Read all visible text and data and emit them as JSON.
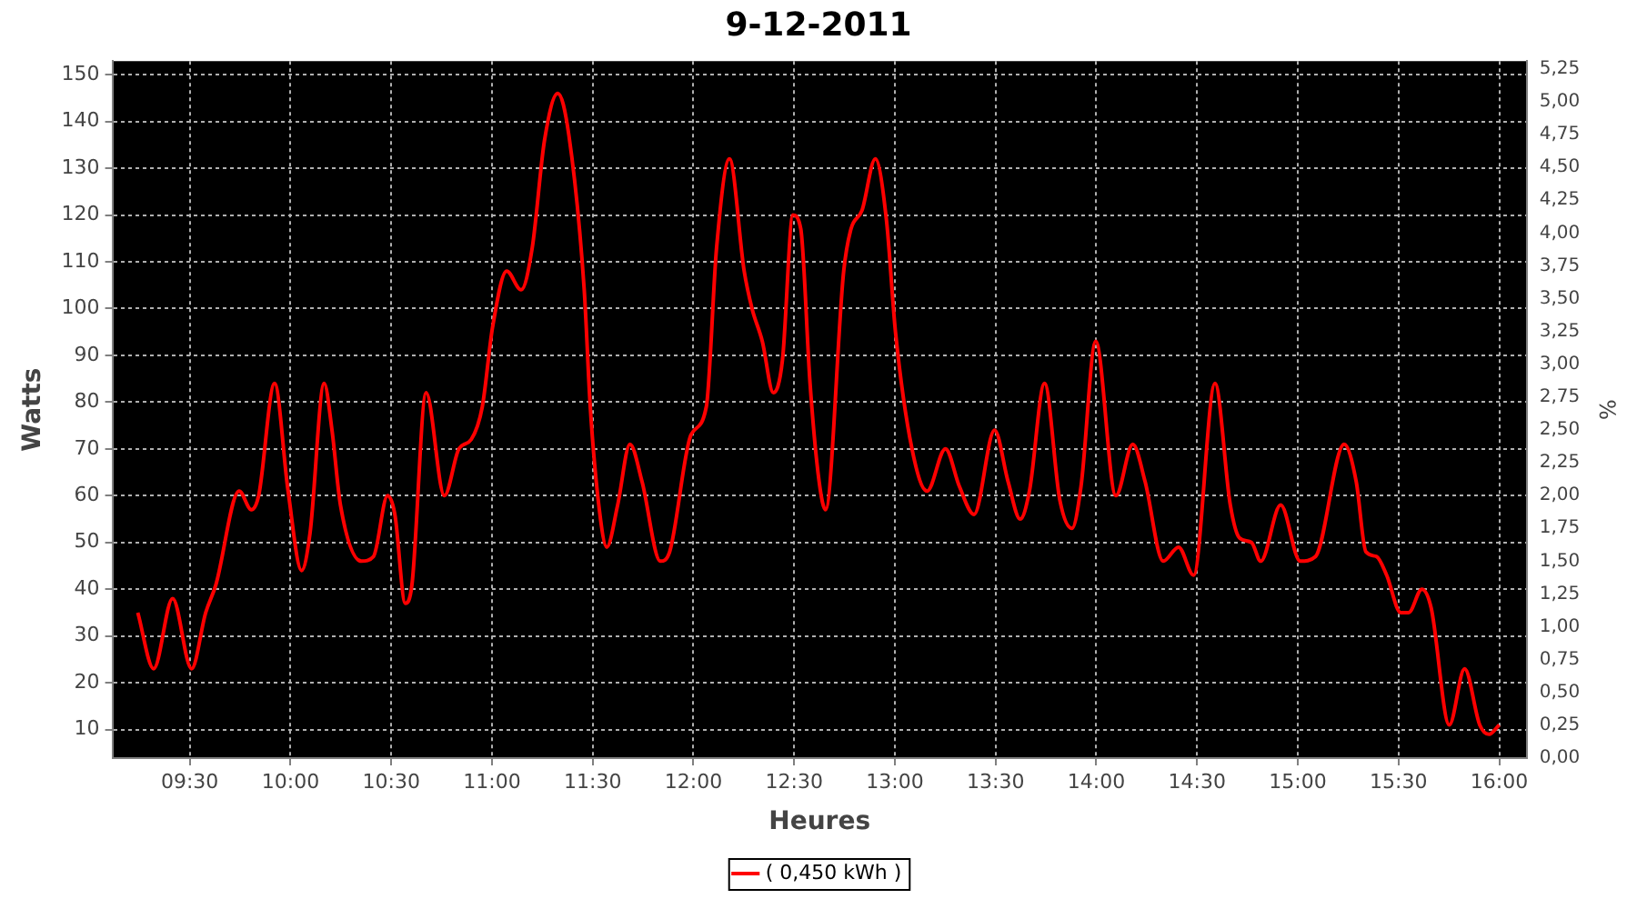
{
  "chart_data": {
    "type": "line",
    "title": "9-12-2011",
    "xlabel": "Heures",
    "ylabel": "Watts",
    "y2label": "%",
    "xlim": [
      9.116,
      16.136
    ],
    "xticks": [
      {
        "value": 9.5,
        "label": "09:30"
      },
      {
        "value": 10,
        "label": "10:00"
      },
      {
        "value": 10.5,
        "label": "10:30"
      },
      {
        "value": 11,
        "label": "11:00"
      },
      {
        "value": 11.5,
        "label": "11:30"
      },
      {
        "value": 12,
        "label": "12:00"
      },
      {
        "value": 12.5,
        "label": "12:30"
      },
      {
        "value": 13,
        "label": "13:00"
      },
      {
        "value": 13.5,
        "label": "13:30"
      },
      {
        "value": 14,
        "label": "14:00"
      },
      {
        "value": 14.5,
        "label": "14:30"
      },
      {
        "value": 15,
        "label": "15:00"
      },
      {
        "value": 15.5,
        "label": "15:30"
      },
      {
        "value": 16,
        "label": "16:00"
      }
    ],
    "ylim": [
      3.9,
      152.9
    ],
    "yticks": [
      10,
      20,
      30,
      40,
      50,
      60,
      70,
      80,
      90,
      100,
      110,
      120,
      130,
      140,
      150
    ],
    "y2lim": [
      0,
      5.31
    ],
    "y2ticks": [
      {
        "value": 0,
        "label": "0,00"
      },
      {
        "value": 0.25,
        "label": "0,25"
      },
      {
        "value": 0.5,
        "label": "0,50"
      },
      {
        "value": 0.75,
        "label": "0,75"
      },
      {
        "value": 1,
        "label": "1,00"
      },
      {
        "value": 1.25,
        "label": "1,25"
      },
      {
        "value": 1.5,
        "label": "1,50"
      },
      {
        "value": 1.75,
        "label": "1,75"
      },
      {
        "value": 2,
        "label": "2,00"
      },
      {
        "value": 2.25,
        "label": "2,25"
      },
      {
        "value": 2.5,
        "label": "2,50"
      },
      {
        "value": 2.75,
        "label": "2,75"
      },
      {
        "value": 3,
        "label": "3,00"
      },
      {
        "value": 3.25,
        "label": "3,25"
      },
      {
        "value": 3.5,
        "label": "3,50"
      },
      {
        "value": 3.75,
        "label": "3,75"
      },
      {
        "value": 4,
        "label": "4,00"
      },
      {
        "value": 4.25,
        "label": "4,25"
      },
      {
        "value": 4.5,
        "label": "4,50"
      },
      {
        "value": 4.75,
        "label": "4,75"
      },
      {
        "value": 5,
        "label": "5,00"
      },
      {
        "value": 5.25,
        "label": "5,25"
      }
    ],
    "grid": true,
    "legend": "bottom",
    "marker": "none",
    "line_style": "solid",
    "series": [
      {
        "name": "( 0,450 kWh )",
        "color": "#ff0000",
        "x": [
          9.242,
          9.321,
          9.415,
          9.509,
          9.579,
          9.63,
          9.745,
          9.806,
          9.842,
          9.921,
          9.988,
          10.055,
          10.097,
          10.167,
          10.206,
          10.248,
          10.352,
          10.412,
          10.482,
          10.518,
          10.57,
          10.603,
          10.673,
          10.764,
          10.836,
          10.897,
          10.952,
          11.003,
          11.073,
          11.145,
          11.2,
          11.261,
          11.327,
          11.382,
          11.458,
          11.488,
          11.533,
          11.57,
          11.624,
          11.685,
          11.745,
          11.836,
          11.882,
          11.988,
          12.064,
          12.115,
          12.179,
          12.252,
          12.291,
          12.342,
          12.397,
          12.442,
          12.494,
          12.533,
          12.579,
          12.624,
          12.656,
          12.746,
          12.782,
          12.837,
          12.903,
          12.958,
          13.003,
          13.085,
          13.16,
          13.251,
          13.32,
          13.393,
          13.495,
          13.562,
          13.622,
          13.668,
          13.743,
          13.819,
          13.879,
          13.924,
          13.997,
          14.097,
          14.181,
          14.242,
          14.332,
          14.408,
          14.483,
          14.589,
          14.665,
          14.71,
          14.77,
          14.816,
          14.915,
          15.012,
          15.088,
          15.23,
          15.29,
          15.338,
          15.39,
          15.441,
          15.511,
          15.55,
          15.616,
          15.662,
          15.752,
          15.828,
          15.903,
          15.949,
          16.0
        ],
        "values": [
          35,
          23,
          38,
          23,
          35,
          41,
          61,
          57,
          60,
          84,
          61,
          44,
          52,
          84,
          74,
          58,
          46,
          47,
          60,
          56,
          37,
          41,
          82,
          60,
          70,
          72,
          79,
          96,
          108,
          104,
          113,
          136,
          146,
          137,
          104,
          79,
          57,
          49,
          58,
          71,
          63,
          46,
          48,
          73,
          79,
          113,
          132,
          108,
          100,
          93,
          82,
          89,
          120,
          117,
          84,
          63,
          57,
          108,
          117,
          121,
          132,
          119,
          95,
          70,
          61,
          70,
          62,
          56,
          74,
          63,
          55,
          61,
          84,
          59,
          53,
          62,
          93,
          60,
          71,
          63,
          46,
          49,
          43,
          84,
          58,
          51,
          50,
          46,
          58,
          46,
          47,
          71,
          63,
          48,
          47,
          43,
          35,
          35,
          40,
          36,
          11,
          23,
          11,
          9,
          11
        ]
      }
    ]
  }
}
